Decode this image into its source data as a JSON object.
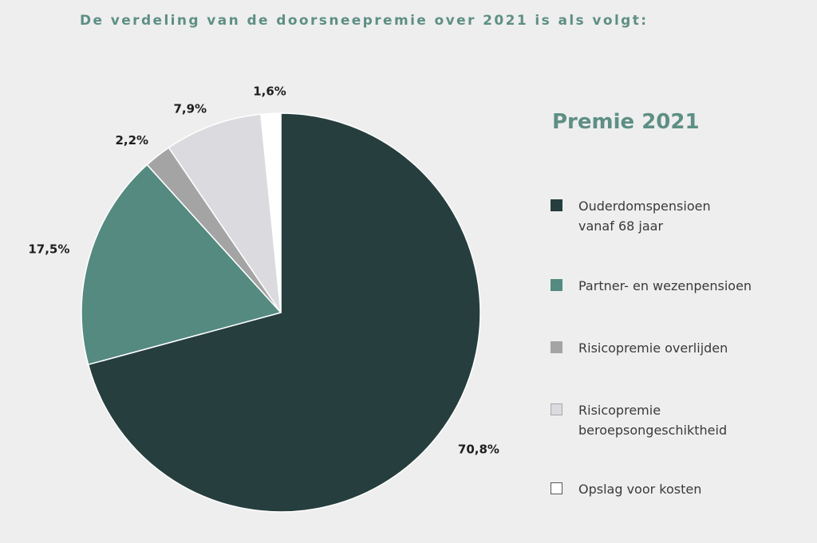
{
  "heading": "De verdeling van de doorsneepremie over 2021 is als volgt:",
  "legend_title": "Premie 2021",
  "chart_data": {
    "type": "pie",
    "title": "Premie 2021",
    "start": "12 o'clock",
    "direction": "clockwise",
    "slices": [
      {
        "name": "Ouderdomspensioen vanaf 68 jaar",
        "legend_lines": [
          "Ouderdomspensioen",
          "vanaf 68 jaar"
        ],
        "value": 70.8,
        "label": "70,8%",
        "color": "#263f3e"
      },
      {
        "name": "Partner- en wezenpensioen",
        "legend_lines": [
          "Partner- en wezenpensioen"
        ],
        "value": 17.5,
        "label": "17,5%",
        "color": "#548a80"
      },
      {
        "name": "Risicopremie overlijden",
        "legend_lines": [
          "Risicopremie overlijden"
        ],
        "value": 2.2,
        "label": "2,2%",
        "color": "#a4a4a4"
      },
      {
        "name": "Risicopremie beroepsongeschiktheid",
        "legend_lines": [
          "Risicopremie",
          "beroepsongeschiktheid"
        ],
        "value": 7.9,
        "label": "7,9%",
        "color": "#dadadf"
      },
      {
        "name": "Opslag voor kosten",
        "legend_lines": [
          "Opslag voor kosten"
        ],
        "value": 1.6,
        "label": "1,6%",
        "color": "#ffffff"
      }
    ]
  }
}
